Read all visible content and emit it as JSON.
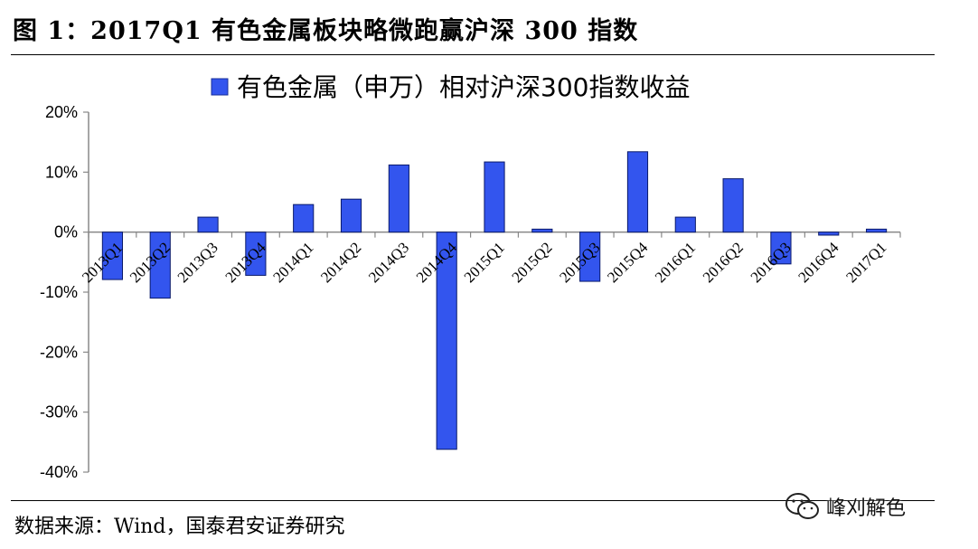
{
  "figure": {
    "title": "图 1：2017Q1 有色金属板块略微跑赢沪深 300 指数",
    "source": "数据来源：Wind，国泰君安证券研究",
    "watermark": "峰刈解色"
  },
  "chart_data": {
    "type": "bar",
    "legend": {
      "label": "有色金属（申万）相对沪深300指数收益",
      "position": "top-center"
    },
    "series": [
      {
        "name": "有色金属（申万）相对沪深300指数收益",
        "color": "#3355EE",
        "values": [
          -7.9,
          -11.0,
          2.5,
          -7.2,
          4.6,
          5.5,
          11.2,
          -36.2,
          11.7,
          0.5,
          -8.2,
          13.4,
          2.5,
          8.9,
          -5.3,
          -0.5,
          0.5
        ]
      }
    ],
    "categories": [
      "2013Q1",
      "2013Q2",
      "2013Q3",
      "2013Q4",
      "2014Q1",
      "2014Q2",
      "2014Q3",
      "2014Q4",
      "2015Q1",
      "2015Q2",
      "2015Q3",
      "2015Q4",
      "2016Q1",
      "2016Q2",
      "2016Q3",
      "2016Q4",
      "2017Q1"
    ],
    "yticks": [
      "20%",
      "10%",
      "0%",
      "-10%",
      "-20%",
      "-30%",
      "-40%"
    ],
    "ylim": [
      -40,
      20
    ],
    "grid": false
  }
}
